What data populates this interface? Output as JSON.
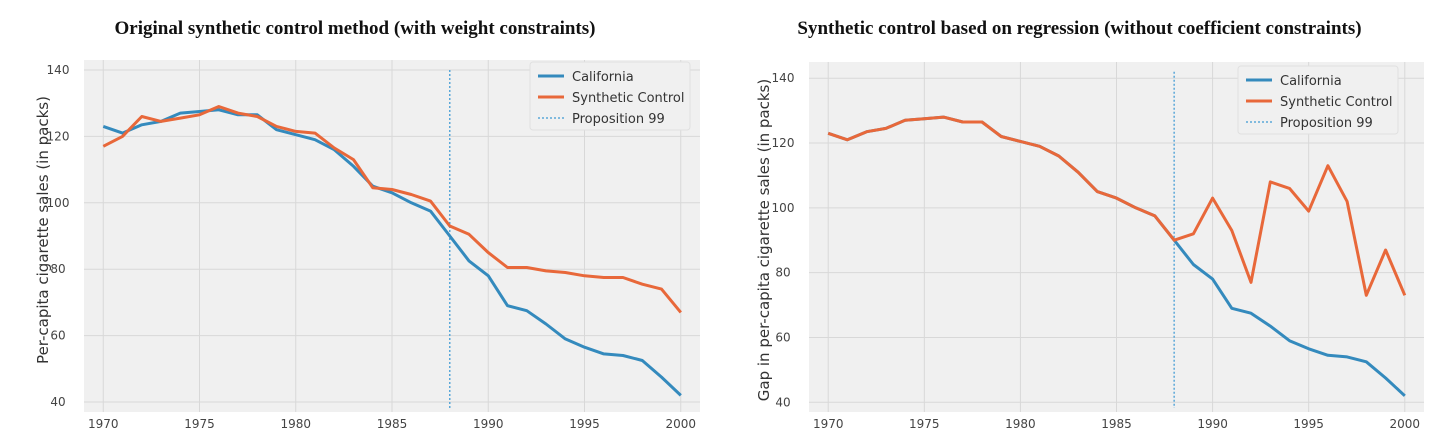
{
  "chart_data": [
    {
      "type": "line",
      "title": "Original synthetic control method (with weight constraints)",
      "xlabel": "",
      "ylabel": "Per-capita cigarette sales (in packs)",
      "xlim": [
        1969,
        2001
      ],
      "ylim": [
        37,
        143
      ],
      "xticks": [
        1970,
        1975,
        1980,
        1985,
        1990,
        1995,
        2000
      ],
      "yticks": [
        40,
        60,
        80,
        100,
        120,
        140
      ],
      "grid": true,
      "legend_position": "top-right",
      "intervention": {
        "name": "Proposition 99",
        "x": 1988
      },
      "x": [
        1970,
        1971,
        1972,
        1973,
        1974,
        1975,
        1976,
        1977,
        1978,
        1979,
        1980,
        1981,
        1982,
        1983,
        1984,
        1985,
        1986,
        1987,
        1988,
        1989,
        1990,
        1991,
        1992,
        1993,
        1994,
        1995,
        1996,
        1997,
        1998,
        1999,
        2000
      ],
      "series": [
        {
          "name": "California",
          "color": "#348ABD",
          "values": [
            123,
            121,
            123.5,
            124.5,
            127,
            127.5,
            128,
            126.5,
            126.5,
            122,
            120.5,
            119,
            116,
            111,
            105,
            103,
            100,
            97.5,
            90,
            82.5,
            78,
            69,
            67.5,
            63.5,
            59,
            56.5,
            54.5,
            54,
            52.5,
            47.5,
            42
          ]
        },
        {
          "name": "Synthetic Control",
          "color": "#E8683A",
          "values": [
            117,
            120,
            126,
            124.5,
            125.5,
            126.5,
            129,
            127,
            126,
            123,
            121.5,
            121,
            116.5,
            113,
            104.5,
            104,
            102.5,
            100.5,
            93,
            90.5,
            85,
            80.5,
            80.5,
            79.5,
            79,
            78,
            77.5,
            77.5,
            75.5,
            74,
            67
          ]
        }
      ]
    },
    {
      "type": "line",
      "title": "Synthetic control based on regression (without coefficient constraints)",
      "xlabel": "",
      "ylabel": "Gap in per-capita cigarette sales (in packs)",
      "xlim": [
        1969,
        2001
      ],
      "ylim": [
        37,
        145
      ],
      "xticks": [
        1970,
        1975,
        1980,
        1985,
        1990,
        1995,
        2000
      ],
      "yticks": [
        40,
        60,
        80,
        100,
        120,
        140
      ],
      "grid": true,
      "legend_position": "top-right",
      "intervention": {
        "name": "Proposition 99",
        "x": 1988
      },
      "x": [
        1970,
        1971,
        1972,
        1973,
        1974,
        1975,
        1976,
        1977,
        1978,
        1979,
        1980,
        1981,
        1982,
        1983,
        1984,
        1985,
        1986,
        1987,
        1988,
        1989,
        1990,
        1991,
        1992,
        1993,
        1994,
        1995,
        1996,
        1997,
        1998,
        1999,
        2000
      ],
      "series": [
        {
          "name": "California",
          "color": "#348ABD",
          "values": [
            123,
            121,
            123.5,
            124.5,
            127,
            127.5,
            128,
            126.5,
            126.5,
            122,
            120.5,
            119,
            116,
            111,
            105,
            103,
            100,
            97.5,
            90,
            82.5,
            78,
            69,
            67.5,
            63.5,
            59,
            56.5,
            54.5,
            54,
            52.5,
            47.5,
            42
          ]
        },
        {
          "name": "Synthetic Control",
          "color": "#E8683A",
          "values": [
            123,
            121,
            123.5,
            124.5,
            127,
            127.5,
            128,
            126.5,
            126.5,
            122,
            120.5,
            119,
            116,
            111,
            105,
            103,
            100,
            97.5,
            90,
            92,
            103,
            93,
            77,
            108,
            106,
            99,
            113,
            102,
            73,
            87,
            73
          ]
        }
      ]
    }
  ]
}
